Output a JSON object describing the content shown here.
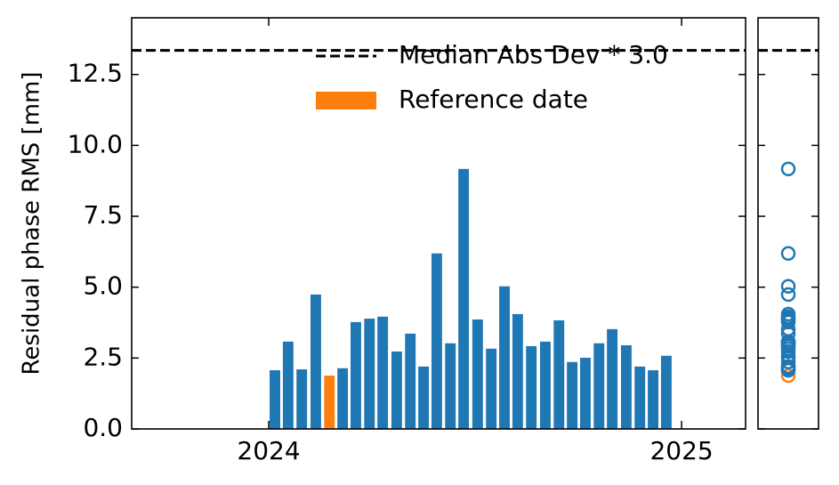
{
  "chart_data": {
    "type": "bar",
    "y_label": "Residual phase RMS [mm]",
    "x": [
      2024.015,
      2024.047,
      2024.08,
      2024.114,
      2024.147,
      2024.179,
      2024.211,
      2024.244,
      2024.276,
      2024.31,
      2024.343,
      2024.375,
      2024.407,
      2024.44,
      2024.472,
      2024.506,
      2024.539,
      2024.571,
      2024.603,
      2024.636,
      2024.67,
      2024.703,
      2024.735,
      2024.767,
      2024.8,
      2024.832,
      2024.866,
      2024.899,
      2024.931,
      2024.963
    ],
    "values": [
      2.07,
      3.08,
      2.1,
      4.74,
      1.88,
      2.14,
      3.77,
      3.89,
      3.96,
      2.73,
      3.36,
      2.2,
      6.19,
      3.02,
      9.17,
      3.86,
      2.83,
      5.03,
      4.05,
      2.92,
      3.08,
      3.83,
      2.36,
      2.51,
      3.02,
      3.52,
      2.95,
      2.2,
      2.07,
      2.58
    ],
    "colors": [
      "#1f77b4",
      "#1f77b4",
      "#1f77b4",
      "#1f77b4",
      "#ff7f0e",
      "#1f77b4",
      "#1f77b4",
      "#1f77b4",
      "#1f77b4",
      "#1f77b4",
      "#1f77b4",
      "#1f77b4",
      "#1f77b4",
      "#1f77b4",
      "#1f77b4",
      "#1f77b4",
      "#1f77b4",
      "#1f77b4",
      "#1f77b4",
      "#1f77b4",
      "#1f77b4",
      "#1f77b4",
      "#1f77b4",
      "#1f77b4",
      "#1f77b4",
      "#1f77b4",
      "#1f77b4",
      "#1f77b4",
      "#1f77b4",
      "#1f77b4"
    ],
    "threshold": 13.35,
    "legend": [
      {
        "label": "Median Abs Dev * 3.0",
        "color": "#000000",
        "style": "dashed"
      },
      {
        "label": "Reference date",
        "color": "#ff7f0e",
        "style": "patch"
      }
    ],
    "xlim": [
      2023.668,
      2025.155
    ],
    "xticks": [
      2024,
      2025
    ],
    "ylim": [
      0,
      14.5
    ],
    "yticks": [
      {
        "value": 0,
        "label": "0.0"
      },
      2.5,
      {
        "value": 5,
        "label": "5.0"
      },
      7.5,
      {
        "value": 10,
        "label": "10.0"
      },
      12.5
    ]
  }
}
